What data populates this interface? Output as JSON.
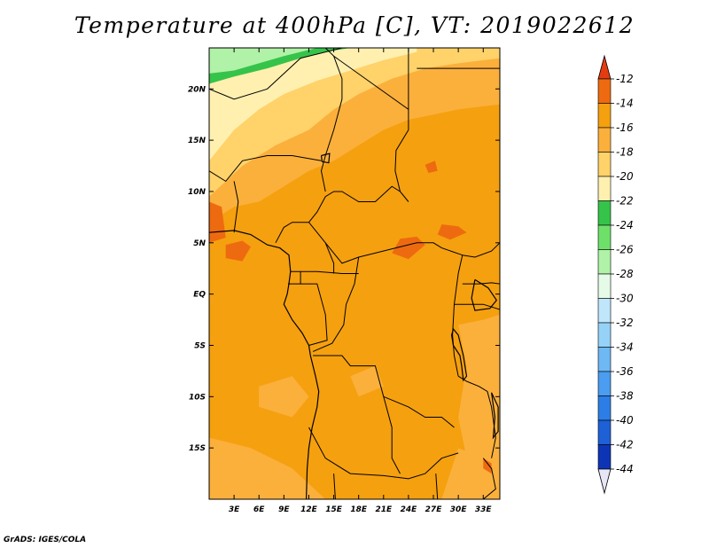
{
  "title": "Temperature at 400hPa [C], VT: 2019022612",
  "footer": "GrADS: IGES/COLA",
  "map": {
    "lon_range": [
      0,
      35
    ],
    "lat_range": [
      -20,
      24
    ],
    "lon_ticks": [
      {
        "value": 3,
        "label": "3E"
      },
      {
        "value": 6,
        "label": "6E"
      },
      {
        "value": 9,
        "label": "9E"
      },
      {
        "value": 12,
        "label": "12E"
      },
      {
        "value": 15,
        "label": "15E"
      },
      {
        "value": 18,
        "label": "18E"
      },
      {
        "value": 21,
        "label": "21E"
      },
      {
        "value": 24,
        "label": "24E"
      },
      {
        "value": 27,
        "label": "27E"
      },
      {
        "value": 30,
        "label": "30E"
      },
      {
        "value": 33,
        "label": "33E"
      }
    ],
    "lat_ticks": [
      {
        "value": 20,
        "label": "20N"
      },
      {
        "value": 15,
        "label": "15N"
      },
      {
        "value": 10,
        "label": "10N"
      },
      {
        "value": 5,
        "label": "5N"
      },
      {
        "value": 0,
        "label": "EQ"
      },
      {
        "value": -5,
        "label": "5S"
      },
      {
        "value": -10,
        "label": "10S"
      },
      {
        "value": -15,
        "label": "15S"
      }
    ],
    "background_color": "#f5a00f",
    "regions": [
      {
        "color": "#fbb03c",
        "points": [
          [
            0,
            7
          ],
          [
            3,
            8.5
          ],
          [
            6,
            9
          ],
          [
            9,
            10.5
          ],
          [
            12,
            12
          ],
          [
            15,
            13
          ],
          [
            18,
            14.5
          ],
          [
            21,
            16
          ],
          [
            24,
            17
          ],
          [
            27,
            17.5
          ],
          [
            30,
            18
          ],
          [
            35,
            18.5
          ],
          [
            35,
            24
          ],
          [
            0,
            24
          ]
        ]
      },
      {
        "color": "#ffd26a",
        "points": [
          [
            0,
            9.5
          ],
          [
            4,
            12.5
          ],
          [
            8,
            14.5
          ],
          [
            12,
            16
          ],
          [
            15,
            18
          ],
          [
            18,
            19.5
          ],
          [
            22,
            21
          ],
          [
            26,
            22
          ],
          [
            30,
            22.5
          ],
          [
            35,
            23
          ],
          [
            35,
            24
          ],
          [
            0,
            24
          ]
        ]
      },
      {
        "color": "#fff0b0",
        "points": [
          [
            0,
            13
          ],
          [
            3,
            16
          ],
          [
            6,
            18
          ],
          [
            9,
            19.5
          ],
          [
            13,
            20.8
          ],
          [
            17,
            21.8
          ],
          [
            21,
            22.8
          ],
          [
            25,
            23.6
          ],
          [
            25,
            24
          ],
          [
            0,
            24
          ]
        ]
      },
      {
        "color": "#36c34a",
        "points": [
          [
            0,
            20.5
          ],
          [
            3,
            21.2
          ],
          [
            7,
            22
          ],
          [
            11,
            23
          ],
          [
            14,
            23.6
          ],
          [
            17,
            24
          ],
          [
            0,
            24
          ]
        ]
      },
      {
        "color": "#b0f2a8",
        "points": [
          [
            0,
            21.5
          ],
          [
            3,
            21.8
          ],
          [
            6,
            22.5
          ],
          [
            9,
            23.2
          ],
          [
            12,
            23.8
          ],
          [
            13,
            24
          ],
          [
            0,
            24
          ]
        ]
      },
      {
        "color": "#fbb03c",
        "points": [
          [
            30,
            -3
          ],
          [
            33,
            -2.5
          ],
          [
            35,
            -2
          ],
          [
            35,
            -20
          ],
          [
            30,
            -20
          ],
          [
            31,
            -16
          ],
          [
            30,
            -12
          ],
          [
            31,
            -7
          ]
        ]
      },
      {
        "color": "#fbb03c",
        "points": [
          [
            6,
            -9
          ],
          [
            10,
            -8
          ],
          [
            12,
            -10
          ],
          [
            10,
            -12
          ],
          [
            6,
            -11
          ]
        ]
      },
      {
        "color": "#fbb03c",
        "points": [
          [
            17,
            -8
          ],
          [
            20,
            -7
          ],
          [
            21,
            -9
          ],
          [
            18,
            -10
          ]
        ]
      },
      {
        "color": "#fbb03c",
        "points": [
          [
            0,
            -14
          ],
          [
            5,
            -15
          ],
          [
            10,
            -17
          ],
          [
            14,
            -20
          ],
          [
            0,
            -20
          ]
        ]
      },
      {
        "color": "#fbb03c",
        "points": [
          [
            30,
            -15
          ],
          [
            33,
            -16
          ],
          [
            35,
            -17
          ],
          [
            35,
            -20
          ],
          [
            28,
            -20
          ]
        ]
      },
      {
        "color": "#ee6a10",
        "points": [
          [
            2,
            4.8
          ],
          [
            4,
            5.2
          ],
          [
            5,
            4.6
          ],
          [
            4,
            3.2
          ],
          [
            2,
            3.5
          ]
        ]
      },
      {
        "color": "#ee6a10",
        "points": [
          [
            23,
            5.4
          ],
          [
            25,
            5.6
          ],
          [
            26,
            4.8
          ],
          [
            24,
            3.4
          ],
          [
            22,
            4.0
          ]
        ]
      },
      {
        "color": "#ee6a10",
        "points": [
          [
            0,
            9
          ],
          [
            1.5,
            8.5
          ],
          [
            2,
            5.5
          ],
          [
            0,
            5
          ]
        ]
      },
      {
        "color": "#ee6a10",
        "points": [
          [
            28,
            6.8
          ],
          [
            30,
            6.6
          ],
          [
            31,
            6
          ],
          [
            29,
            5.3
          ],
          [
            27.5,
            5.8
          ]
        ]
      },
      {
        "color": "#ee6a10",
        "points": [
          [
            26,
            12.6
          ],
          [
            27.2,
            13
          ],
          [
            27.5,
            12
          ],
          [
            26.4,
            11.8
          ]
        ]
      },
      {
        "color": "#ee6a10",
        "points": [
          [
            33,
            -16
          ],
          [
            34,
            -16.5
          ],
          [
            34,
            -17.5
          ],
          [
            33,
            -17
          ]
        ]
      }
    ],
    "boundaries": [
      [
        [
          0,
          20
        ],
        [
          3,
          19
        ],
        [
          7,
          20
        ],
        [
          11,
          23
        ],
        [
          16,
          24
        ]
      ],
      [
        [
          14,
          24
        ],
        [
          15,
          23.2
        ],
        [
          16,
          21
        ],
        [
          16,
          19
        ],
        [
          15,
          16
        ],
        [
          14,
          13.5
        ],
        [
          13.5,
          12
        ],
        [
          14,
          10
        ]
      ],
      [
        [
          15,
          23.2
        ],
        [
          24,
          18
        ],
        [
          24,
          16
        ],
        [
          22.5,
          14
        ],
        [
          22.4,
          12
        ],
        [
          23,
          10
        ],
        [
          24,
          9
        ]
      ],
      [
        [
          24,
          24
        ],
        [
          24,
          20
        ],
        [
          24,
          18
        ]
      ],
      [
        [
          35,
          22
        ],
        [
          34,
          22
        ],
        [
          31,
          22
        ],
        [
          25,
          22
        ]
      ],
      [
        [
          0,
          12
        ],
        [
          2,
          11
        ],
        [
          4,
          13
        ],
        [
          7,
          13.5
        ],
        [
          10,
          13.5
        ],
        [
          13.5,
          13
        ]
      ],
      [
        [
          3,
          11
        ],
        [
          3.5,
          9
        ],
        [
          3,
          6
        ]
      ],
      [
        [
          12,
          7
        ],
        [
          13,
          8
        ],
        [
          14,
          9.5
        ],
        [
          15,
          10
        ],
        [
          16,
          10
        ],
        [
          18,
          9
        ],
        [
          20,
          9
        ],
        [
          22,
          10.5
        ],
        [
          23,
          10
        ]
      ],
      [
        [
          8,
          5
        ],
        [
          9,
          6.5
        ],
        [
          10,
          7
        ],
        [
          12,
          7
        ],
        [
          13,
          6
        ],
        [
          14,
          5
        ],
        [
          15,
          4
        ],
        [
          16,
          3
        ],
        [
          18,
          3.6
        ],
        [
          20,
          4
        ],
        [
          23,
          4.6
        ],
        [
          25,
          5
        ],
        [
          27,
          5
        ],
        [
          28,
          4.5
        ],
        [
          30.5,
          3.8
        ]
      ],
      [
        [
          14,
          5
        ],
        [
          15,
          3
        ],
        [
          15,
          2
        ]
      ],
      [
        [
          9.8,
          2.2
        ],
        [
          11,
          2.2
        ],
        [
          13,
          2.2
        ],
        [
          16,
          2
        ],
        [
          18,
          2
        ]
      ],
      [
        [
          11,
          2.2
        ],
        [
          11,
          1
        ],
        [
          9.5,
          1
        ]
      ],
      [
        [
          11,
          1
        ],
        [
          12,
          1
        ],
        [
          13,
          1
        ],
        [
          14,
          -2
        ],
        [
          14.2,
          -4.5
        ],
        [
          12,
          -5
        ]
      ],
      [
        [
          18,
          3.6
        ],
        [
          17.5,
          1
        ],
        [
          16.5,
          -1
        ],
        [
          16.2,
          -3
        ],
        [
          14.8,
          -4.8
        ],
        [
          12.5,
          -5.6
        ]
      ],
      [
        [
          30.5,
          3.8
        ],
        [
          30,
          2
        ],
        [
          29.5,
          -1
        ],
        [
          29.3,
          -4
        ],
        [
          29.5,
          -6
        ],
        [
          30,
          -8
        ]
      ],
      [
        [
          12.5,
          -6
        ],
        [
          16,
          -6
        ],
        [
          17,
          -7
        ],
        [
          20,
          -7
        ],
        [
          21,
          -10
        ],
        [
          24,
          -11
        ],
        [
          26,
          -12
        ],
        [
          28,
          -12
        ],
        [
          29.5,
          -13
        ]
      ],
      [
        [
          21,
          -10
        ],
        [
          22,
          -13
        ],
        [
          22,
          -16
        ],
        [
          23,
          -17.5
        ]
      ],
      [
        [
          12,
          -13
        ],
        [
          14,
          -16
        ],
        [
          17,
          -17.5
        ],
        [
          21,
          -17.7
        ],
        [
          24,
          -18
        ],
        [
          26,
          -17.5
        ],
        [
          28,
          -16
        ],
        [
          30,
          -15.5
        ]
      ],
      [
        [
          30,
          -8
        ],
        [
          31,
          -8.5
        ],
        [
          32.5,
          -9
        ],
        [
          33.5,
          -9.5
        ],
        [
          34,
          -11
        ],
        [
          34.5,
          -14
        ],
        [
          34,
          -16
        ]
      ],
      [
        [
          30.5,
          3.8
        ],
        [
          32,
          3.6
        ],
        [
          34,
          4.2
        ],
        [
          35,
          5
        ]
      ],
      [
        [
          30.5,
          1
        ],
        [
          32.5,
          1.0
        ],
        [
          34,
          1.1
        ],
        [
          35,
          1
        ]
      ],
      [
        [
          29.5,
          -1
        ],
        [
          30.8,
          -1
        ],
        [
          31,
          -1
        ],
        [
          33,
          -1
        ],
        [
          35,
          -1.5
        ]
      ],
      [
        [
          33,
          -16
        ],
        [
          34,
          -17
        ],
        [
          34.5,
          -19
        ],
        [
          33,
          -20
        ]
      ],
      [
        [
          27.5,
          -20
        ],
        [
          27.3,
          -17.5
        ]
      ],
      [
        [
          15.2,
          -20
        ],
        [
          15,
          -17.5
        ]
      ]
    ],
    "coastlines": [
      [
        [
          0,
          6
        ],
        [
          3,
          6.2
        ],
        [
          5,
          5.8
        ],
        [
          7,
          4.8
        ],
        [
          8.5,
          4.5
        ],
        [
          9.6,
          3.8
        ],
        [
          9.8,
          2.2
        ],
        [
          9.6,
          1
        ],
        [
          9.4,
          0
        ],
        [
          9,
          -1
        ],
        [
          10,
          -2.5
        ],
        [
          11.2,
          -3.8
        ],
        [
          12,
          -5
        ],
        [
          12.2,
          -6
        ],
        [
          12.8,
          -8
        ],
        [
          13.2,
          -9.5
        ],
        [
          13,
          -11
        ],
        [
          12.4,
          -13
        ],
        [
          12,
          -15
        ],
        [
          11.8,
          -17
        ],
        [
          11.7,
          -20
        ]
      ],
      [
        [
          30.4,
          -7
        ],
        [
          30.2,
          -6
        ],
        [
          29.4,
          -5
        ],
        [
          29.2,
          -4
        ],
        [
          29.4,
          -3.4
        ],
        [
          30,
          -4
        ],
        [
          30.6,
          -6
        ],
        [
          31,
          -8
        ],
        [
          30.6,
          -8.4
        ],
        [
          30.4,
          -7
        ]
      ],
      [
        [
          32,
          1.4
        ],
        [
          33.6,
          0.6
        ],
        [
          34.6,
          -0.6
        ],
        [
          33.8,
          -1.4
        ],
        [
          32,
          -1.6
        ],
        [
          31.6,
          -0.4
        ],
        [
          32,
          1.4
        ]
      ],
      [
        [
          34,
          -9.6
        ],
        [
          34.8,
          -11
        ],
        [
          34.8,
          -13.4
        ],
        [
          34.2,
          -14
        ],
        [
          34.4,
          -12
        ],
        [
          34,
          -9.6
        ]
      ],
      [
        [
          13.5,
          13.5
        ],
        [
          14.5,
          13.7
        ],
        [
          14.4,
          12.8
        ],
        [
          13.6,
          12.9
        ],
        [
          13.5,
          13.5
        ]
      ]
    ]
  },
  "colorbar": {
    "levels": [
      {
        "label": "-12",
        "color": "#ee6a10"
      },
      {
        "label": "-14",
        "color": "#f5a00f"
      },
      {
        "label": "-16",
        "color": "#fbb03c"
      },
      {
        "label": "-18",
        "color": "#ffd26a"
      },
      {
        "label": "-20",
        "color": "#fff0b0"
      },
      {
        "label": "-22",
        "color": "#36c34a"
      },
      {
        "label": "-24",
        "color": "#6ee06a"
      },
      {
        "label": "-26",
        "color": "#b0f2a8"
      },
      {
        "label": "-28",
        "color": "#e6fae8"
      },
      {
        "label": "-30",
        "color": "#bfe6fb"
      },
      {
        "label": "-32",
        "color": "#96d2f8"
      },
      {
        "label": "-34",
        "color": "#6eb8f4"
      },
      {
        "label": "-36",
        "color": "#4a9df0"
      },
      {
        "label": "-38",
        "color": "#2c7ee6"
      },
      {
        "label": "-40",
        "color": "#1e60d6"
      },
      {
        "label": "-42",
        "color": "#0e34b6"
      },
      {
        "label": "-44",
        "color": "#0a1470"
      }
    ],
    "top_color": "#e43c10",
    "bottom_color": "#e6e6f6"
  }
}
